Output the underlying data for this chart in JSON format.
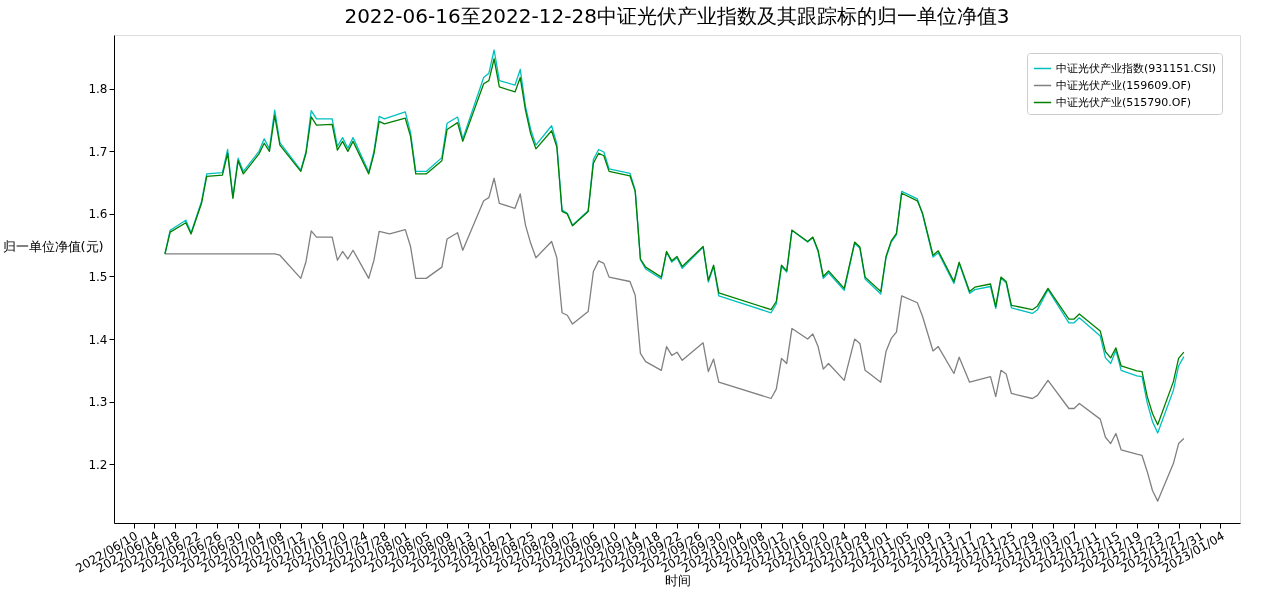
{
  "chart_data": {
    "type": "line",
    "title": "2022-06-16至2022-12-28中证光伏产业指数及其跟踪标的归一单位净值3",
    "xlabel": "时间",
    "ylabel": "归一单位净值(元)",
    "xlim": [
      "2022-06-06T06:00",
      "2023-01-07T18:00"
    ],
    "xticks": [
      {
        "value": "2022-06-10",
        "label": "2022/06/10"
      },
      {
        "value": "2022-06-14",
        "label": "2022/06/14"
      },
      {
        "value": "2022-06-18",
        "label": "2022/06/18"
      },
      {
        "value": "2022-06-22",
        "label": "2022/06/22"
      },
      {
        "value": "2022-06-26",
        "label": "2022/06/26"
      },
      {
        "value": "2022-06-30",
        "label": "2022/06/30"
      },
      {
        "value": "2022-07-04",
        "label": "2022/07/04"
      },
      {
        "value": "2022-07-08",
        "label": "2022/07/08"
      },
      {
        "value": "2022-07-12",
        "label": "2022/07/12"
      },
      {
        "value": "2022-07-16",
        "label": "2022/07/16"
      },
      {
        "value": "2022-07-20",
        "label": "2022/07/20"
      },
      {
        "value": "2022-07-24",
        "label": "2022/07/24"
      },
      {
        "value": "2022-07-28",
        "label": "2022/07/28"
      },
      {
        "value": "2022-08-01",
        "label": "2022/08/01"
      },
      {
        "value": "2022-08-05",
        "label": "2022/08/05"
      },
      {
        "value": "2022-08-09",
        "label": "2022/08/09"
      },
      {
        "value": "2022-08-13",
        "label": "2022/08/13"
      },
      {
        "value": "2022-08-17",
        "label": "2022/08/17"
      },
      {
        "value": "2022-08-21",
        "label": "2022/08/21"
      },
      {
        "value": "2022-08-25",
        "label": "2022/08/25"
      },
      {
        "value": "2022-08-29",
        "label": "2022/08/29"
      },
      {
        "value": "2022-09-02",
        "label": "2022/09/02"
      },
      {
        "value": "2022-09-06",
        "label": "2022/09/06"
      },
      {
        "value": "2022-09-10",
        "label": "2022/09/10"
      },
      {
        "value": "2022-09-14",
        "label": "2022/09/14"
      },
      {
        "value": "2022-09-18",
        "label": "2022/09/18"
      },
      {
        "value": "2022-09-22",
        "label": "2022/09/22"
      },
      {
        "value": "2022-09-26",
        "label": "2022/09/26"
      },
      {
        "value": "2022-09-30",
        "label": "2022/09/30"
      },
      {
        "value": "2022-10-04",
        "label": "2022/10/04"
      },
      {
        "value": "2022-10-08",
        "label": "2022/10/08"
      },
      {
        "value": "2022-10-12",
        "label": "2022/10/12"
      },
      {
        "value": "2022-10-16",
        "label": "2022/10/16"
      },
      {
        "value": "2022-10-20",
        "label": "2022/10/20"
      },
      {
        "value": "2022-10-24",
        "label": "2022/10/24"
      },
      {
        "value": "2022-10-28",
        "label": "2022/10/28"
      },
      {
        "value": "2022-11-01",
        "label": "2022/11/01"
      },
      {
        "value": "2022-11-05",
        "label": "2022/11/05"
      },
      {
        "value": "2022-11-09",
        "label": "2022/11/09"
      },
      {
        "value": "2022-11-13",
        "label": "2022/11/13"
      },
      {
        "value": "2022-11-17",
        "label": "2022/11/17"
      },
      {
        "value": "2022-11-21",
        "label": "2022/11/21"
      },
      {
        "value": "2022-11-25",
        "label": "2022/11/25"
      },
      {
        "value": "2022-11-29",
        "label": "2022/11/29"
      },
      {
        "value": "2022-12-03",
        "label": "2022/12/03"
      },
      {
        "value": "2022-12-07",
        "label": "2022/12/07"
      },
      {
        "value": "2022-12-11",
        "label": "2022/12/11"
      },
      {
        "value": "2022-12-15",
        "label": "2022/12/15"
      },
      {
        "value": "2022-12-19",
        "label": "2022/12/19"
      },
      {
        "value": "2022-12-23",
        "label": "2022/12/23"
      },
      {
        "value": "2022-12-27",
        "label": "2022/12/27"
      },
      {
        "value": "2022-12-31",
        "label": "2022/12/31"
      },
      {
        "value": "2023-01-04",
        "label": "2023/01/04"
      }
    ],
    "ylim": [
      1.106,
      1.886
    ],
    "yticks": [
      1.2,
      1.3,
      1.4,
      1.5,
      1.6,
      1.7,
      1.8
    ],
    "grid": false,
    "legend": "top right",
    "marker": "none",
    "line_style": "solid",
    "series": [
      {
        "name": "中证光伏产业指数(931151.CSI)",
        "color": "#00bfbf",
        "x": [
          "2022-06-16",
          "2022-06-17",
          "2022-06-20",
          "2022-06-21",
          "2022-06-23",
          "2022-06-24",
          "2022-06-27",
          "2022-06-28",
          "2022-06-29",
          "2022-06-30",
          "2022-07-01",
          "2022-07-04",
          "2022-07-05",
          "2022-07-06",
          "2022-07-07",
          "2022-07-08",
          "2022-07-12",
          "2022-07-13",
          "2022-07-14",
          "2022-07-15",
          "2022-07-18",
          "2022-07-19",
          "2022-07-20",
          "2022-07-21",
          "2022-07-22",
          "2022-07-25",
          "2022-07-26",
          "2022-07-27",
          "2022-07-28",
          "2022-08-01",
          "2022-08-02",
          "2022-08-03",
          "2022-08-05",
          "2022-08-08",
          "2022-08-09",
          "2022-08-11",
          "2022-08-12",
          "2022-08-16",
          "2022-08-17",
          "2022-08-18",
          "2022-08-19",
          "2022-08-22",
          "2022-08-23",
          "2022-08-24",
          "2022-08-25",
          "2022-08-26",
          "2022-08-29",
          "2022-08-30",
          "2022-08-31",
          "2022-09-01",
          "2022-09-02",
          "2022-09-05",
          "2022-09-06",
          "2022-09-07",
          "2022-09-08",
          "2022-09-09",
          "2022-09-13",
          "2022-09-14",
          "2022-09-15",
          "2022-09-16",
          "2022-09-19",
          "2022-09-20",
          "2022-09-21",
          "2022-09-22",
          "2022-09-23",
          "2022-09-27",
          "2022-09-28",
          "2022-09-29",
          "2022-09-30",
          "2022-10-10",
          "2022-10-11",
          "2022-10-12",
          "2022-10-13",
          "2022-10-14",
          "2022-10-17",
          "2022-10-18",
          "2022-10-19",
          "2022-10-20",
          "2022-10-21",
          "2022-10-24",
          "2022-10-26",
          "2022-10-27",
          "2022-10-28",
          "2022-10-31",
          "2022-11-01",
          "2022-11-02",
          "2022-11-03",
          "2022-11-04",
          "2022-11-07",
          "2022-11-08",
          "2022-11-10",
          "2022-11-11",
          "2022-11-14",
          "2022-11-15",
          "2022-11-17",
          "2022-11-18",
          "2022-11-21",
          "2022-11-22",
          "2022-11-23",
          "2022-11-24",
          "2022-11-25",
          "2022-11-29",
          "2022-11-30",
          "2022-12-02",
          "2022-12-06",
          "2022-12-07",
          "2022-12-08",
          "2022-12-12",
          "2022-12-13",
          "2022-12-14",
          "2022-12-15",
          "2022-12-16",
          "2022-12-19",
          "2022-12-20",
          "2022-12-21",
          "2022-12-22",
          "2022-12-23",
          "2022-12-26",
          "2022-12-27",
          "2022-12-28"
        ],
        "values": [
          1.536,
          1.574,
          1.59,
          1.57,
          1.62,
          1.664,
          1.666,
          1.703,
          1.627,
          1.689,
          1.668,
          1.7,
          1.72,
          1.704,
          1.766,
          1.714,
          1.67,
          1.7,
          1.765,
          1.752,
          1.752,
          1.708,
          1.722,
          1.705,
          1.722,
          1.667,
          1.7,
          1.756,
          1.752,
          1.763,
          1.73,
          1.668,
          1.668,
          1.69,
          1.745,
          1.755,
          1.72,
          1.818,
          1.825,
          1.862,
          1.813,
          1.806,
          1.831,
          1.772,
          1.735,
          1.71,
          1.741,
          1.712,
          1.606,
          1.601,
          1.582,
          1.605,
          1.687,
          1.703,
          1.699,
          1.672,
          1.665,
          1.638,
          1.527,
          1.512,
          1.496,
          1.539,
          1.523,
          1.53,
          1.513,
          1.547,
          1.491,
          1.516,
          1.469,
          1.442,
          1.456,
          1.516,
          1.507,
          1.574,
          1.555,
          1.562,
          1.54,
          1.497,
          1.506,
          1.478,
          1.553,
          1.545,
          1.496,
          1.472,
          1.53,
          1.555,
          1.567,
          1.636,
          1.624,
          1.599,
          1.531,
          1.538,
          1.489,
          1.521,
          1.473,
          1.479,
          1.484,
          1.449,
          1.497,
          1.49,
          1.45,
          1.441,
          1.447,
          1.479,
          1.426,
          1.426,
          1.434,
          1.405,
          1.37,
          1.361,
          1.382,
          1.35,
          1.341,
          1.34,
          1.298,
          1.268,
          1.25,
          1.318,
          1.357,
          1.372
        ]
      },
      {
        "name": "中证光伏产业(159609.OF)",
        "color": "#808080",
        "x": [
          "2022-06-16",
          "2022-07-07",
          "2022-07-08",
          "2022-07-12",
          "2022-07-13",
          "2022-07-14",
          "2022-07-15",
          "2022-07-18",
          "2022-07-19",
          "2022-07-20",
          "2022-07-21",
          "2022-07-22",
          "2022-07-25",
          "2022-07-26",
          "2022-07-27",
          "2022-07-29",
          "2022-08-01",
          "2022-08-02",
          "2022-08-03",
          "2022-08-05",
          "2022-08-08",
          "2022-08-09",
          "2022-08-11",
          "2022-08-12",
          "2022-08-16",
          "2022-08-17",
          "2022-08-18",
          "2022-08-19",
          "2022-08-22",
          "2022-08-23",
          "2022-08-24",
          "2022-08-25",
          "2022-08-26",
          "2022-08-29",
          "2022-08-30",
          "2022-08-31",
          "2022-09-01",
          "2022-09-02",
          "2022-09-05",
          "2022-09-06",
          "2022-09-07",
          "2022-09-08",
          "2022-09-09",
          "2022-09-13",
          "2022-09-14",
          "2022-09-15",
          "2022-09-16",
          "2022-09-19",
          "2022-09-20",
          "2022-09-21",
          "2022-09-22",
          "2022-09-23",
          "2022-09-27",
          "2022-09-28",
          "2022-09-29",
          "2022-09-30",
          "2022-10-10",
          "2022-10-11",
          "2022-10-12",
          "2022-10-13",
          "2022-10-14",
          "2022-10-17",
          "2022-10-18",
          "2022-10-19",
          "2022-10-20",
          "2022-10-21",
          "2022-10-24",
          "2022-10-26",
          "2022-10-27",
          "2022-10-28",
          "2022-10-31",
          "2022-11-01",
          "2022-11-02",
          "2022-11-03",
          "2022-11-04",
          "2022-11-07",
          "2022-11-08",
          "2022-11-10",
          "2022-11-11",
          "2022-11-14",
          "2022-11-15",
          "2022-11-17",
          "2022-11-21",
          "2022-11-22",
          "2022-11-23",
          "2022-11-24",
          "2022-11-25",
          "2022-11-29",
          "2022-11-30",
          "2022-12-02",
          "2022-12-06",
          "2022-12-07",
          "2022-12-08",
          "2022-12-12",
          "2022-12-13",
          "2022-12-14",
          "2022-12-15",
          "2022-12-16",
          "2022-12-19",
          "2022-12-20",
          "2022-12-21",
          "2022-12-22",
          "2022-12-23",
          "2022-12-26",
          "2022-12-27",
          "2022-12-28"
        ],
        "values": [
          1.536,
          1.536,
          1.534,
          1.497,
          1.524,
          1.573,
          1.563,
          1.563,
          1.526,
          1.54,
          1.528,
          1.542,
          1.497,
          1.526,
          1.572,
          1.568,
          1.575,
          1.548,
          1.497,
          1.497,
          1.515,
          1.56,
          1.57,
          1.542,
          1.621,
          1.626,
          1.657,
          1.617,
          1.609,
          1.632,
          1.582,
          1.553,
          1.53,
          1.556,
          1.53,
          1.442,
          1.438,
          1.424,
          1.444,
          1.508,
          1.525,
          1.521,
          1.499,
          1.492,
          1.47,
          1.377,
          1.364,
          1.35,
          1.388,
          1.374,
          1.379,
          1.366,
          1.394,
          1.348,
          1.368,
          1.331,
          1.305,
          1.32,
          1.369,
          1.361,
          1.417,
          1.4,
          1.408,
          1.388,
          1.352,
          1.361,
          1.334,
          1.4,
          1.393,
          1.35,
          1.331,
          1.38,
          1.401,
          1.411,
          1.469,
          1.458,
          1.436,
          1.381,
          1.388,
          1.345,
          1.371,
          1.331,
          1.34,
          1.308,
          1.35,
          1.344,
          1.313,
          1.305,
          1.31,
          1.334,
          1.289,
          1.289,
          1.297,
          1.272,
          1.243,
          1.233,
          1.249,
          1.223,
          1.216,
          1.214,
          1.188,
          1.158,
          1.141,
          1.201,
          1.233,
          1.241
        ]
      },
      {
        "name": "中证光伏产业(515790.OF)",
        "color": "#008000",
        "x": [
          "2022-06-16",
          "2022-06-17",
          "2022-06-20",
          "2022-06-21",
          "2022-06-23",
          "2022-06-24",
          "2022-06-27",
          "2022-06-28",
          "2022-06-29",
          "2022-06-30",
          "2022-07-01",
          "2022-07-04",
          "2022-07-05",
          "2022-07-06",
          "2022-07-07",
          "2022-07-08",
          "2022-07-12",
          "2022-07-13",
          "2022-07-14",
          "2022-07-15",
          "2022-07-18",
          "2022-07-19",
          "2022-07-20",
          "2022-07-21",
          "2022-07-22",
          "2022-07-25",
          "2022-07-26",
          "2022-07-27",
          "2022-07-28",
          "2022-08-01",
          "2022-08-02",
          "2022-08-03",
          "2022-08-05",
          "2022-08-08",
          "2022-08-09",
          "2022-08-11",
          "2022-08-12",
          "2022-08-16",
          "2022-08-17",
          "2022-08-18",
          "2022-08-19",
          "2022-08-22",
          "2022-08-23",
          "2022-08-24",
          "2022-08-25",
          "2022-08-26",
          "2022-08-29",
          "2022-08-30",
          "2022-08-31",
          "2022-09-01",
          "2022-09-02",
          "2022-09-05",
          "2022-09-06",
          "2022-09-07",
          "2022-09-08",
          "2022-09-09",
          "2022-09-13",
          "2022-09-14",
          "2022-09-15",
          "2022-09-16",
          "2022-09-19",
          "2022-09-20",
          "2022-09-21",
          "2022-09-22",
          "2022-09-23",
          "2022-09-27",
          "2022-09-28",
          "2022-09-29",
          "2022-09-30",
          "2022-10-10",
          "2022-10-11",
          "2022-10-12",
          "2022-10-13",
          "2022-10-14",
          "2022-10-17",
          "2022-10-18",
          "2022-10-19",
          "2022-10-20",
          "2022-10-21",
          "2022-10-24",
          "2022-10-26",
          "2022-10-27",
          "2022-10-28",
          "2022-10-31",
          "2022-11-01",
          "2022-11-02",
          "2022-11-03",
          "2022-11-04",
          "2022-11-07",
          "2022-11-08",
          "2022-11-10",
          "2022-11-11",
          "2022-11-14",
          "2022-11-15",
          "2022-11-17",
          "2022-11-18",
          "2022-11-21",
          "2022-11-22",
          "2022-11-23",
          "2022-11-24",
          "2022-11-25",
          "2022-11-29",
          "2022-11-30",
          "2022-12-02",
          "2022-12-06",
          "2022-12-07",
          "2022-12-08",
          "2022-12-12",
          "2022-12-13",
          "2022-12-14",
          "2022-12-15",
          "2022-12-16",
          "2022-12-19",
          "2022-12-20",
          "2022-12-21",
          "2022-12-22",
          "2022-12-23",
          "2022-12-26",
          "2022-12-27",
          "2022-12-28"
        ],
        "values": [
          1.536,
          1.571,
          1.586,
          1.568,
          1.617,
          1.66,
          1.662,
          1.697,
          1.625,
          1.685,
          1.664,
          1.696,
          1.713,
          1.7,
          1.757,
          1.71,
          1.668,
          1.697,
          1.755,
          1.742,
          1.743,
          1.702,
          1.716,
          1.7,
          1.716,
          1.664,
          1.696,
          1.748,
          1.744,
          1.753,
          1.724,
          1.664,
          1.664,
          1.685,
          1.735,
          1.746,
          1.716,
          1.808,
          1.813,
          1.848,
          1.803,
          1.795,
          1.818,
          1.766,
          1.728,
          1.704,
          1.733,
          1.707,
          1.604,
          1.6,
          1.581,
          1.604,
          1.681,
          1.697,
          1.693,
          1.668,
          1.661,
          1.636,
          1.528,
          1.515,
          1.499,
          1.54,
          1.525,
          1.532,
          1.516,
          1.548,
          1.494,
          1.518,
          1.474,
          1.447,
          1.46,
          1.518,
          1.509,
          1.574,
          1.556,
          1.563,
          1.542,
          1.5,
          1.509,
          1.481,
          1.555,
          1.547,
          1.499,
          1.476,
          1.532,
          1.557,
          1.569,
          1.633,
          1.621,
          1.601,
          1.534,
          1.541,
          1.492,
          1.523,
          1.476,
          1.483,
          1.488,
          1.452,
          1.499,
          1.492,
          1.454,
          1.447,
          1.453,
          1.481,
          1.432,
          1.432,
          1.44,
          1.413,
          1.38,
          1.37,
          1.386,
          1.357,
          1.349,
          1.348,
          1.308,
          1.281,
          1.263,
          1.332,
          1.369,
          1.379
        ]
      }
    ]
  }
}
